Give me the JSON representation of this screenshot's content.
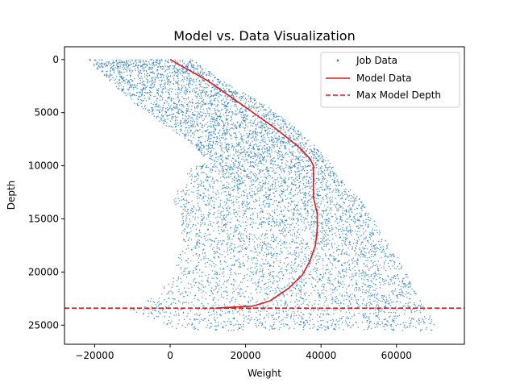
{
  "chart_data": {
    "type": "scatter",
    "title": "Model vs. Data Visualization",
    "xlabel": "Weight",
    "ylabel": "Depth",
    "xlim": [
      -28000,
      78000
    ],
    "ylim": [
      26800,
      -1200
    ],
    "y_inverted": true,
    "grid": false,
    "legend_position": "top-right",
    "x_ticks": [
      -20000,
      0,
      20000,
      40000,
      60000
    ],
    "y_ticks": [
      0,
      5000,
      10000,
      15000,
      20000,
      25000
    ],
    "x_tick_labels": [
      "−20000",
      "0",
      "20000",
      "40000",
      "60000"
    ],
    "y_tick_labels": [
      "0",
      "5000",
      "10000",
      "15000",
      "20000",
      "25000"
    ],
    "colors": {
      "job_data": "#1f77b4",
      "model_data": "#e31a1c",
      "max_depth": "#e31a1c"
    },
    "series": [
      {
        "name": "Job Data",
        "kind": "scatter",
        "envelope": [
          {
            "depth": 0,
            "wmin": -22000,
            "wmax": 6000
          },
          {
            "depth": 2000,
            "wmin": -16000,
            "wmax": 14000
          },
          {
            "depth": 4000,
            "wmin": -10000,
            "wmax": 24000
          },
          {
            "depth": 6000,
            "wmin": -2000,
            "wmax": 32000
          },
          {
            "depth": 8000,
            "wmin": 6000,
            "wmax": 38000
          },
          {
            "depth": 9500,
            "wmin": 10000,
            "wmax": 42000
          },
          {
            "depth": 10500,
            "wmin": 4000,
            "wmax": 44000
          },
          {
            "depth": 12000,
            "wmin": 3000,
            "wmax": 47000
          },
          {
            "depth": 13000,
            "wmin": 0,
            "wmax": 50000
          },
          {
            "depth": 15000,
            "wmin": 3000,
            "wmax": 54000
          },
          {
            "depth": 17000,
            "wmin": 3000,
            "wmax": 57000
          },
          {
            "depth": 19000,
            "wmin": 2000,
            "wmax": 61000
          },
          {
            "depth": 21000,
            "wmin": 0,
            "wmax": 64000
          },
          {
            "depth": 22500,
            "wmin": -6000,
            "wmax": 66000
          },
          {
            "depth": 23500,
            "wmin": -12000,
            "wmax": 68000
          },
          {
            "depth": 24500,
            "wmin": -4000,
            "wmax": 70000
          },
          {
            "depth": 25500,
            "wmin": 2000,
            "wmax": 70000
          }
        ]
      },
      {
        "name": "Model Data",
        "kind": "line",
        "points": [
          {
            "x": 0,
            "y": 0
          },
          {
            "x": 10000,
            "y": 2000
          },
          {
            "x": 20000,
            "y": 4500
          },
          {
            "x": 28000,
            "y": 6500
          },
          {
            "x": 34000,
            "y": 8200
          },
          {
            "x": 37000,
            "y": 9300
          },
          {
            "x": 38000,
            "y": 10000
          },
          {
            "x": 38000,
            "y": 11500
          },
          {
            "x": 38000,
            "y": 13000
          },
          {
            "x": 39000,
            "y": 14500
          },
          {
            "x": 39000,
            "y": 16000
          },
          {
            "x": 38500,
            "y": 17500
          },
          {
            "x": 37000,
            "y": 19000
          },
          {
            "x": 35000,
            "y": 20300
          },
          {
            "x": 31500,
            "y": 21500
          },
          {
            "x": 26500,
            "y": 22700
          },
          {
            "x": 22000,
            "y": 23200
          },
          {
            "x": 12000,
            "y": 23400
          }
        ]
      },
      {
        "name": "Max Model Depth",
        "kind": "hline",
        "y": 23400
      }
    ]
  }
}
